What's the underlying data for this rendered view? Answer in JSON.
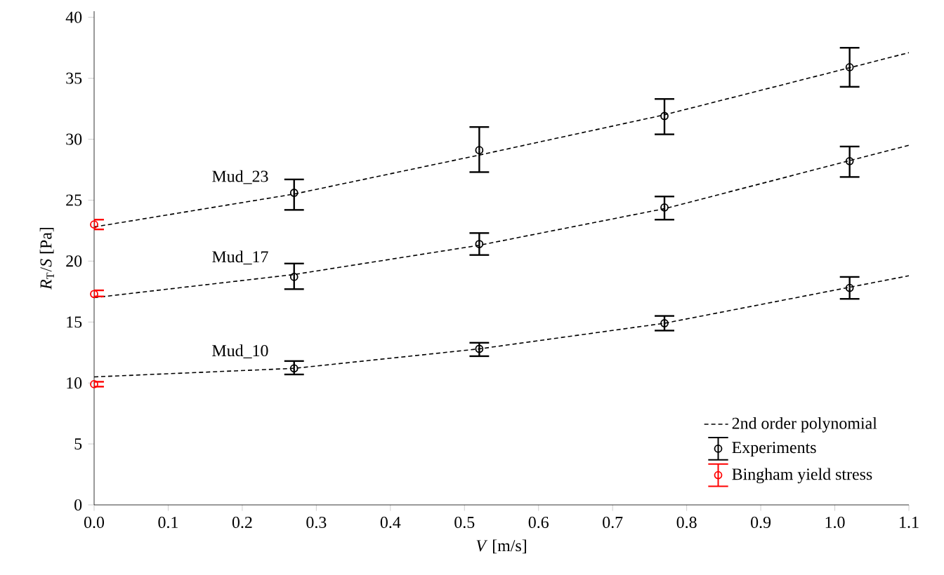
{
  "chart_data": {
    "type": "line",
    "xlabel": "*V* [m/s]",
    "ylabel": "*R*$_{T}$/*S* [Pa]",
    "xlim": [
      0,
      1.1
    ],
    "ylim": [
      0,
      40.5
    ],
    "xticks": [
      {
        "value": 0,
        "label": "0.0"
      },
      0.1,
      0.2,
      0.3,
      0.4,
      0.5,
      0.6,
      0.7,
      0.8,
      0.9,
      {
        "value": 1,
        "label": "1.0"
      },
      1.1
    ],
    "yticks": [
      0,
      5,
      10,
      15,
      20,
      25,
      30,
      35,
      40
    ],
    "legend": "bottom right",
    "grid": false,
    "annotations": [
      "Mud_10",
      "Mud_17",
      "Mud_23"
    ],
    "series": [
      {
        "name": "2nd order polynomial",
        "color": "#000000",
        "line_style": "dashed",
        "marker": "none",
        "x": [
          0,
          0.27,
          0.52,
          0.77,
          1.1
        ],
        "values": [
          10.5,
          11.2,
          12.8,
          14.9,
          18.8
        ]
      },
      {
        "color": "#000000",
        "line_style": "dashed",
        "marker": "none",
        "x": [
          0,
          0.27,
          0.52,
          0.77,
          1.1
        ],
        "values": [
          17.0,
          18.9,
          21.3,
          24.3,
          29.5
        ]
      },
      {
        "color": "#000000",
        "line_style": "dashed",
        "marker": "none",
        "x": [
          0,
          0.27,
          0.52,
          0.77,
          1.1
        ],
        "values": [
          22.8,
          25.5,
          28.7,
          32.0,
          37.1
        ]
      },
      {
        "name": "Experiments",
        "type": "scatter",
        "color": "#000000",
        "marker": "circle",
        "x": [
          0.27,
          0.52,
          0.77,
          1.02
        ],
        "values": [
          11.2,
          12.8,
          14.9,
          17.8
        ],
        "errors": [
          [
            10.7,
            11.8
          ],
          [
            12.2,
            13.3
          ],
          [
            14.3,
            15.5
          ],
          [
            16.9,
            18.7
          ]
        ]
      },
      {
        "type": "scatter",
        "color": "#000000",
        "marker": "circle",
        "x": [
          0.27,
          0.52,
          0.77,
          1.02
        ],
        "values": [
          18.7,
          21.4,
          24.4,
          28.2
        ],
        "errors": [
          [
            17.7,
            19.8
          ],
          [
            20.5,
            22.3
          ],
          [
            23.4,
            25.3
          ],
          [
            26.9,
            29.4
          ]
        ]
      },
      {
        "type": "scatter",
        "color": "#000000",
        "marker": "circle",
        "x": [
          0.27,
          0.52,
          0.77,
          1.02
        ],
        "values": [
          25.6,
          29.1,
          31.9,
          35.9
        ],
        "errors": [
          [
            24.2,
            26.7
          ],
          [
            27.3,
            31.0
          ],
          [
            30.4,
            33.3
          ],
          [
            34.3,
            37.5
          ]
        ]
      },
      {
        "name": "Bingham yield stress",
        "type": "scatter",
        "color": "#ff0000",
        "marker": "circle",
        "x": [
          0
        ],
        "values": [
          9.9
        ],
        "errors": [
          [
            9.7,
            10.1
          ]
        ]
      },
      {
        "type": "scatter",
        "color": "#ff0000",
        "marker": "circle",
        "x": [
          0
        ],
        "values": [
          17.3
        ],
        "errors": [
          [
            17.1,
            17.6
          ]
        ]
      },
      {
        "type": "scatter",
        "color": "#ff0000",
        "marker": "circle",
        "x": [
          0
        ],
        "values": [
          23.0
        ],
        "errors": [
          [
            22.6,
            23.4
          ]
        ]
      }
    ]
  }
}
